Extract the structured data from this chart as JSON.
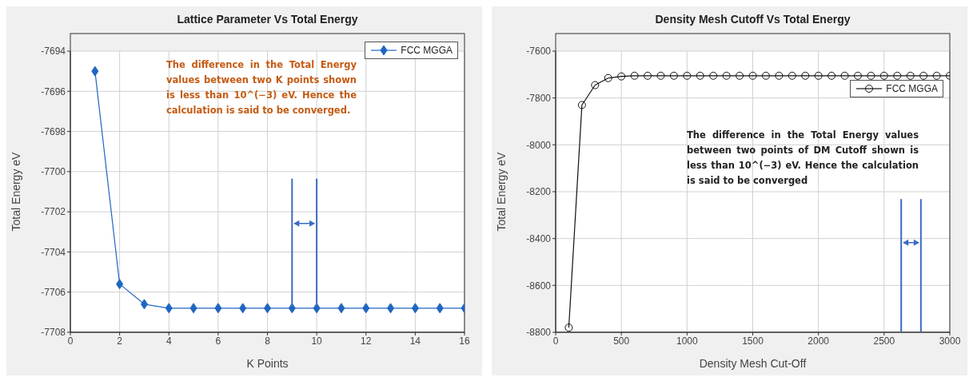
{
  "chart_data": [
    {
      "type": "line",
      "title": "Lattice Parameter Vs Total Energy",
      "xlabel": "K Points",
      "ylabel": "Total Energy eV",
      "x": [
        1,
        2,
        3,
        4,
        5,
        6,
        7,
        8,
        9,
        10,
        11,
        12,
        13,
        14,
        15,
        16
      ],
      "series": [
        {
          "name": "FCC MGGA",
          "color": "#1f66c2",
          "values": [
            -7695.0,
            -7705.6,
            -7706.6,
            -7706.8,
            -7706.8,
            -7706.8,
            -7706.8,
            -7706.8,
            -7706.8,
            -7706.8,
            -7706.8,
            -7706.8,
            -7706.8,
            -7706.8,
            -7706.8,
            -7706.8
          ]
        }
      ],
      "xlim": [
        0,
        16
      ],
      "xticks": [
        0,
        2,
        4,
        6,
        8,
        10,
        12,
        14,
        16
      ],
      "ylim": [
        -7708,
        -7694
      ],
      "yticks": [
        -7708,
        -7706,
        -7704,
        -7702,
        -7700,
        -7698,
        -7696,
        -7694
      ],
      "grid": true,
      "legend": "top right",
      "marker": "diamond",
      "line_style": "solid",
      "annotations": [
        "The difference in the Total Energy values between two K points shown is less than 10^(−3) eV. Hence the calculation is said to be converged."
      ]
    },
    {
      "type": "line",
      "title": "Density Mesh Cutoff Vs Total Energy",
      "xlabel": "Density Mesh Cut-Off",
      "ylabel": "Total Energy eV",
      "x": [
        100,
        200,
        300,
        400,
        500,
        600,
        700,
        800,
        900,
        1000,
        1100,
        1200,
        1300,
        1400,
        1500,
        1600,
        1700,
        1800,
        1900,
        2000,
        2100,
        2200,
        2300,
        2400,
        2500,
        2600,
        2700,
        2800,
        2900,
        3000
      ],
      "series": [
        {
          "name": "FCC MGGA",
          "color": "#111111",
          "values": [
            -8780,
            -7830,
            -7745,
            -7715,
            -7708,
            -7705,
            -7705,
            -7705,
            -7705,
            -7705,
            -7705,
            -7705,
            -7705,
            -7705,
            -7705,
            -7705,
            -7705,
            -7705,
            -7705,
            -7705,
            -7705,
            -7705,
            -7705,
            -7705,
            -7705,
            -7705,
            -7705,
            -7705,
            -7705,
            -7705
          ]
        }
      ],
      "xlim": [
        0,
        3000
      ],
      "xticks": [
        0,
        500,
        1000,
        1500,
        2000,
        2500,
        3000
      ],
      "ylim": [
        -8800,
        -7600
      ],
      "yticks": [
        -8800,
        -8600,
        -8400,
        -8200,
        -8000,
        -7800,
        -7600
      ],
      "grid": true,
      "legend": "top right",
      "marker": "circle",
      "line_style": "solid",
      "annotations": [
        "The difference in the Total Energy values between two points of DM Cutoff shown is less than 10^(−3) eV. Hence the calculation is said to be converged"
      ]
    }
  ]
}
